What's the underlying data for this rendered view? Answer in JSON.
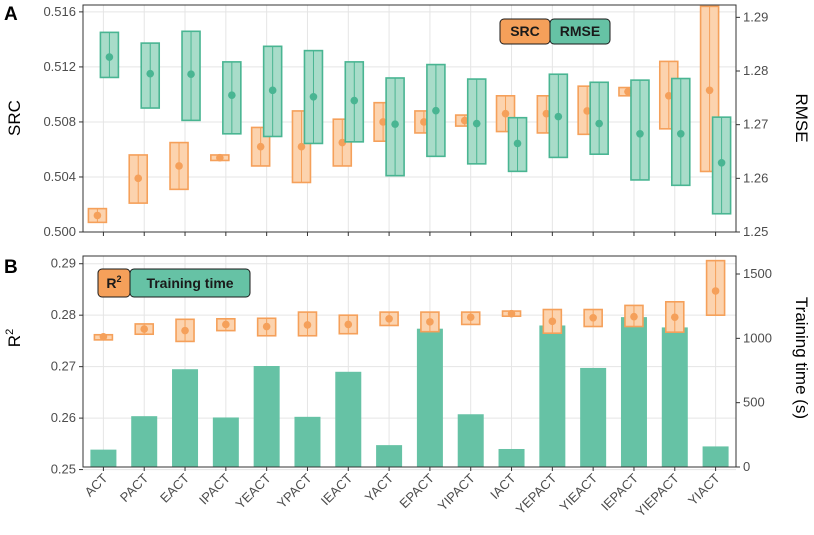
{
  "categories": [
    "ACT",
    "PACT",
    "EACT",
    "IPACT",
    "YEACT",
    "YPACT",
    "IEACT",
    "YACT",
    "EPACT",
    "YIPACT",
    "IACT",
    "YEPACT",
    "YIEACT",
    "IEPACT",
    "YIEPACT",
    "YIACT"
  ],
  "colors": {
    "orange": "#f5a05a",
    "orange_fill": "#fcd3ae",
    "green": "#49b592",
    "green_fill": "#a8dcc9",
    "bar": "#66c2a5",
    "grid": "#e5e5e5",
    "frame": "#333333"
  },
  "chart_data": [
    {
      "panel": "A",
      "type": "errorbar",
      "left_axis": {
        "label": "SRC",
        "ylim": [
          0.5,
          0.5165
        ],
        "ticks": [
          "0.500",
          "0.504",
          "0.508",
          "0.512",
          "0.516"
        ]
      },
      "right_axis": {
        "label": "RMSE",
        "ylim": [
          1.25,
          1.2923
        ],
        "ticks": [
          "1.25",
          "1.26",
          "1.27",
          "1.28",
          "1.29"
        ]
      },
      "legend": [
        "SRC",
        "RMSE"
      ],
      "series": [
        {
          "name": "SRC",
          "axis": "left",
          "mean": [
            0.5012,
            0.5039,
            0.5048,
            0.5054,
            0.5062,
            0.5062,
            0.5065,
            0.508,
            0.508,
            0.5081,
            0.5086,
            0.5086,
            0.5088,
            0.5102,
            0.5099,
            0.5103
          ],
          "low": [
            0.5007,
            0.5021,
            0.5031,
            0.5052,
            0.5048,
            0.5036,
            0.5048,
            0.5066,
            0.5072,
            0.5077,
            0.5073,
            0.5072,
            0.5071,
            0.5099,
            0.5075,
            0.5044
          ],
          "high": [
            0.5017,
            0.5056,
            0.5065,
            0.5056,
            0.5076,
            0.5088,
            0.5082,
            0.5094,
            0.5088,
            0.5085,
            0.5099,
            0.5099,
            0.5106,
            0.5105,
            0.5124,
            0.5164
          ]
        },
        {
          "name": "RMSE",
          "axis": "right",
          "mean": [
            1.2826,
            1.2795,
            1.2794,
            1.2755,
            1.2764,
            1.2752,
            1.2745,
            1.2701,
            1.2726,
            1.2702,
            1.2665,
            1.2715,
            1.2702,
            1.2683,
            1.2683,
            1.2629
          ],
          "low": [
            1.2788,
            1.2731,
            1.2708,
            1.2683,
            1.2678,
            1.2665,
            1.2668,
            1.2605,
            1.2641,
            1.2627,
            1.2613,
            1.2639,
            1.2645,
            1.2597,
            1.2587,
            1.2534
          ],
          "high": [
            1.2872,
            1.2852,
            1.2874,
            1.2817,
            1.2846,
            1.2838,
            1.2817,
            1.2787,
            1.2812,
            1.2785,
            1.2713,
            1.2794,
            1.2779,
            1.2783,
            1.2786,
            1.2714
          ]
        }
      ]
    },
    {
      "panel": "B",
      "type": "bar+errorbar",
      "left_axis": {
        "label": "R2",
        "label_base": "R",
        "label_sup": "2",
        "ylim": [
          0.2505,
          0.2915
        ],
        "ticks": [
          "0.25",
          "0.26",
          "0.27",
          "0.28",
          "0.29"
        ]
      },
      "right_axis": {
        "label": "Training time (s)",
        "ylim": [
          0,
          1640
        ],
        "ticks": [
          "0",
          "500",
          "1000",
          "1500"
        ]
      },
      "legend": [
        "R2",
        "Training time"
      ],
      "legend_r2": {
        "base": "R",
        "sup": "2"
      },
      "legend_training_time": "Training time",
      "series": [
        {
          "name": "R2",
          "axis": "left",
          "mean": [
            0.2758,
            0.2773,
            0.277,
            0.2782,
            0.2778,
            0.2781,
            0.2782,
            0.2793,
            0.2787,
            0.2796,
            0.2803,
            0.2788,
            0.2795,
            0.2797,
            0.2796,
            0.2847
          ],
          "low": [
            0.2752,
            0.2763,
            0.2749,
            0.277,
            0.276,
            0.276,
            0.2764,
            0.278,
            0.2768,
            0.2782,
            0.2798,
            0.2765,
            0.2778,
            0.2778,
            0.2767,
            0.28
          ],
          "high": [
            0.2762,
            0.2783,
            0.2792,
            0.2793,
            0.2794,
            0.2806,
            0.28,
            0.2806,
            0.2806,
            0.2806,
            0.2808,
            0.2811,
            0.2811,
            0.2819,
            0.2826,
            0.2906
          ]
        },
        {
          "name": "Training time",
          "axis": "right",
          "type": "bar",
          "values": [
            135,
            395,
            760,
            385,
            785,
            390,
            740,
            170,
            1075,
            410,
            140,
            1100,
            770,
            1165,
            1085,
            160
          ]
        }
      ]
    }
  ]
}
